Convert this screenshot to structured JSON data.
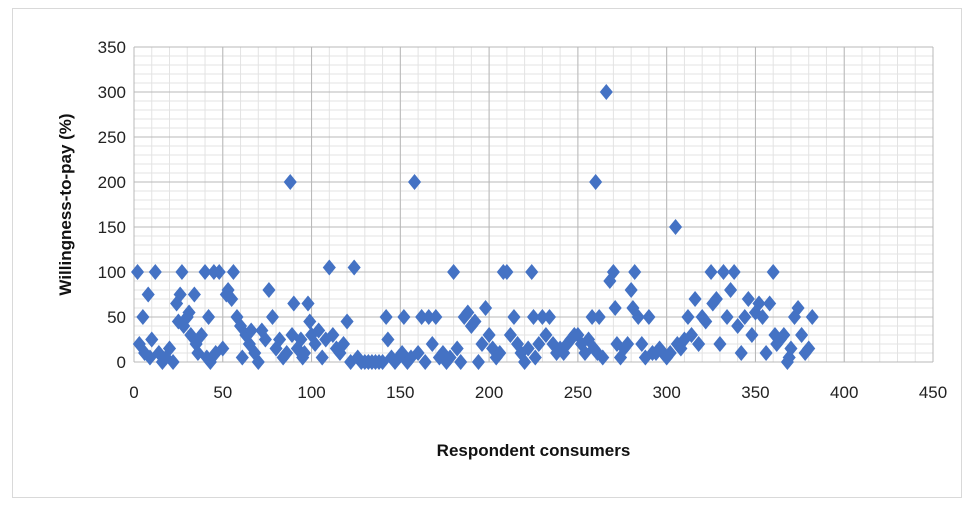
{
  "chart_data": {
    "type": "scatter",
    "title": "",
    "xlabel": "Respondent consumers",
    "ylabel": "Willingness-to-pay (%)",
    "xlim": [
      0,
      450
    ],
    "ylim": [
      0,
      350
    ],
    "x_ticks": [
      "0",
      "50",
      "100",
      "150",
      "200",
      "250",
      "300",
      "350",
      "400",
      "450"
    ],
    "y_ticks": [
      "0",
      "50",
      "100",
      "150",
      "200",
      "250",
      "300",
      "350"
    ],
    "grid": "major and minor",
    "legend": "none",
    "marker": "diamond",
    "color": "#4472c4",
    "series": [
      {
        "points": [
          [
            2,
            100
          ],
          [
            3,
            20
          ],
          [
            5,
            50
          ],
          [
            6,
            10
          ],
          [
            8,
            75
          ],
          [
            9,
            5
          ],
          [
            10,
            25
          ],
          [
            12,
            100
          ],
          [
            14,
            10
          ],
          [
            16,
            0
          ],
          [
            18,
            5
          ],
          [
            20,
            15
          ],
          [
            22,
            0
          ],
          [
            24,
            65
          ],
          [
            25,
            45
          ],
          [
            26,
            75
          ],
          [
            27,
            100
          ],
          [
            28,
            40
          ],
          [
            30,
            50
          ],
          [
            31,
            55
          ],
          [
            32,
            30
          ],
          [
            34,
            75
          ],
          [
            35,
            20
          ],
          [
            36,
            10
          ],
          [
            38,
            30
          ],
          [
            40,
            100
          ],
          [
            41,
            5
          ],
          [
            42,
            50
          ],
          [
            43,
            0
          ],
          [
            45,
            100
          ],
          [
            46,
            10
          ],
          [
            48,
            100
          ],
          [
            50,
            15
          ],
          [
            52,
            75
          ],
          [
            53,
            80
          ],
          [
            55,
            70
          ],
          [
            56,
            100
          ],
          [
            58,
            50
          ],
          [
            60,
            40
          ],
          [
            61,
            5
          ],
          [
            63,
            30
          ],
          [
            65,
            20
          ],
          [
            66,
            35
          ],
          [
            68,
            10
          ],
          [
            70,
            0
          ],
          [
            72,
            35
          ],
          [
            74,
            25
          ],
          [
            76,
            80
          ],
          [
            78,
            50
          ],
          [
            80,
            15
          ],
          [
            82,
            25
          ],
          [
            84,
            5
          ],
          [
            86,
            10
          ],
          [
            88,
            200
          ],
          [
            89,
            30
          ],
          [
            90,
            65
          ],
          [
            92,
            15
          ],
          [
            94,
            25
          ],
          [
            95,
            5
          ],
          [
            96,
            10
          ],
          [
            98,
            65
          ],
          [
            99,
            45
          ],
          [
            100,
            30
          ],
          [
            102,
            20
          ],
          [
            104,
            35
          ],
          [
            106,
            5
          ],
          [
            108,
            25
          ],
          [
            110,
            105
          ],
          [
            112,
            30
          ],
          [
            114,
            15
          ],
          [
            116,
            10
          ],
          [
            118,
            20
          ],
          [
            120,
            45
          ],
          [
            122,
            0
          ],
          [
            124,
            105
          ],
          [
            126,
            5
          ],
          [
            128,
            0
          ],
          [
            130,
            0
          ],
          [
            132,
            0
          ],
          [
            134,
            0
          ],
          [
            136,
            0
          ],
          [
            138,
            0
          ],
          [
            140,
            0
          ],
          [
            142,
            50
          ],
          [
            143,
            25
          ],
          [
            145,
            5
          ],
          [
            147,
            0
          ],
          [
            149,
            5
          ],
          [
            151,
            10
          ],
          [
            152,
            50
          ],
          [
            154,
            0
          ],
          [
            156,
            5
          ],
          [
            158,
            200
          ],
          [
            160,
            10
          ],
          [
            162,
            50
          ],
          [
            164,
            0
          ],
          [
            166,
            50
          ],
          [
            168,
            20
          ],
          [
            170,
            50
          ],
          [
            172,
            5
          ],
          [
            174,
            10
          ],
          [
            176,
            0
          ],
          [
            178,
            5
          ],
          [
            180,
            100
          ],
          [
            182,
            15
          ],
          [
            184,
            0
          ],
          [
            186,
            50
          ],
          [
            188,
            55
          ],
          [
            190,
            40
          ],
          [
            192,
            45
          ],
          [
            194,
            0
          ],
          [
            196,
            20
          ],
          [
            198,
            60
          ],
          [
            200,
            30
          ],
          [
            202,
            15
          ],
          [
            204,
            5
          ],
          [
            206,
            10
          ],
          [
            208,
            100
          ],
          [
            210,
            100
          ],
          [
            212,
            30
          ],
          [
            214,
            50
          ],
          [
            216,
            20
          ],
          [
            218,
            10
          ],
          [
            220,
            0
          ],
          [
            222,
            15
          ],
          [
            224,
            100
          ],
          [
            225,
            50
          ],
          [
            226,
            5
          ],
          [
            228,
            20
          ],
          [
            230,
            50
          ],
          [
            232,
            30
          ],
          [
            234,
            50
          ],
          [
            236,
            20
          ],
          [
            238,
            10
          ],
          [
            240,
            15
          ],
          [
            242,
            10
          ],
          [
            244,
            20
          ],
          [
            246,
            25
          ],
          [
            248,
            30
          ],
          [
            250,
            30
          ],
          [
            252,
            20
          ],
          [
            254,
            10
          ],
          [
            256,
            25
          ],
          [
            258,
            50
          ],
          [
            259,
            15
          ],
          [
            260,
            200
          ],
          [
            261,
            10
          ],
          [
            262,
            50
          ],
          [
            264,
            5
          ],
          [
            266,
            300
          ],
          [
            268,
            90
          ],
          [
            270,
            100
          ],
          [
            271,
            60
          ],
          [
            272,
            20
          ],
          [
            274,
            5
          ],
          [
            276,
            15
          ],
          [
            278,
            20
          ],
          [
            280,
            80
          ],
          [
            281,
            60
          ],
          [
            282,
            100
          ],
          [
            284,
            50
          ],
          [
            286,
            20
          ],
          [
            288,
            5
          ],
          [
            290,
            50
          ],
          [
            292,
            10
          ],
          [
            294,
            10
          ],
          [
            296,
            15
          ],
          [
            298,
            10
          ],
          [
            300,
            5
          ],
          [
            302,
            10
          ],
          [
            305,
            150
          ],
          [
            306,
            20
          ],
          [
            308,
            15
          ],
          [
            310,
            25
          ],
          [
            312,
            50
          ],
          [
            314,
            30
          ],
          [
            316,
            70
          ],
          [
            318,
            20
          ],
          [
            320,
            50
          ],
          [
            322,
            45
          ],
          [
            325,
            100
          ],
          [
            326,
            65
          ],
          [
            328,
            70
          ],
          [
            330,
            20
          ],
          [
            332,
            100
          ],
          [
            334,
            50
          ],
          [
            336,
            80
          ],
          [
            338,
            100
          ],
          [
            340,
            40
          ],
          [
            342,
            10
          ],
          [
            344,
            50
          ],
          [
            346,
            70
          ],
          [
            348,
            30
          ],
          [
            350,
            55
          ],
          [
            352,
            65
          ],
          [
            354,
            50
          ],
          [
            356,
            10
          ],
          [
            358,
            65
          ],
          [
            360,
            100
          ],
          [
            361,
            30
          ],
          [
            362,
            20
          ],
          [
            364,
            25
          ],
          [
            366,
            30
          ],
          [
            368,
            0
          ],
          [
            369,
            5
          ],
          [
            370,
            15
          ],
          [
            372,
            50
          ],
          [
            374,
            60
          ],
          [
            376,
            30
          ],
          [
            378,
            10
          ],
          [
            380,
            15
          ],
          [
            382,
            50
          ]
        ]
      }
    ]
  }
}
